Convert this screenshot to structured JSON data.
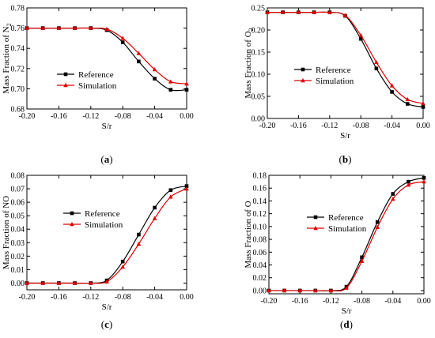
{
  "figure": {
    "legend_reference": "Reference",
    "legend_simulation": "Simulation"
  },
  "chart_data": [
    {
      "type": "line",
      "caption_letter": "a",
      "xlabel": "S/r",
      "ylabel_main": "Mass Fraction of N",
      "ylabel_sub": "2",
      "xlim": [
        -0.2,
        0.0
      ],
      "ylim": [
        0.68,
        0.78
      ],
      "xticks": [
        -0.2,
        -0.16,
        -0.12,
        -0.08,
        -0.04,
        0.0
      ],
      "xtick_labels": [
        "-0.20",
        "-0.16",
        "-0.12",
        "-0.08",
        "-0.04",
        "0.00"
      ],
      "yticks": [
        0.68,
        0.7,
        0.72,
        0.74,
        0.76,
        0.78
      ],
      "ytick_labels": [
        "0.68",
        "0.70",
        "0.72",
        "0.74",
        "0.76",
        "0.78"
      ],
      "grid": false,
      "legend_position": "center-left",
      "series": [
        {
          "name": "Reference",
          "color": "#000000",
          "marker": "square",
          "x": [
            -0.2,
            -0.18,
            -0.16,
            -0.14,
            -0.12,
            -0.1,
            -0.08,
            -0.06,
            -0.04,
            -0.02,
            0.0
          ],
          "y": [
            0.76,
            0.76,
            0.76,
            0.76,
            0.76,
            0.758,
            0.746,
            0.727,
            0.71,
            0.699,
            0.699
          ]
        },
        {
          "name": "Simulation",
          "color": "#e00000",
          "marker": "triangle",
          "x": [
            -0.2,
            -0.18,
            -0.16,
            -0.14,
            -0.12,
            -0.1,
            -0.08,
            -0.06,
            -0.04,
            -0.02,
            0.0
          ],
          "y": [
            0.76,
            0.76,
            0.76,
            0.76,
            0.76,
            0.759,
            0.75,
            0.735,
            0.719,
            0.707,
            0.705
          ]
        }
      ]
    },
    {
      "type": "line",
      "caption_letter": "b",
      "xlabel": "S/r",
      "ylabel_main": "Mass Fraction of O",
      "ylabel_sub": "2",
      "xlim": [
        -0.2,
        0.0
      ],
      "ylim": [
        0.0,
        0.25
      ],
      "xticks": [
        -0.2,
        -0.16,
        -0.12,
        -0.08,
        -0.04,
        0.0
      ],
      "xtick_labels": [
        "-0.20",
        "-0.16",
        "-0.12",
        "-0.08",
        "-0.04",
        "0.00"
      ],
      "yticks": [
        0.0,
        0.05,
        0.1,
        0.15,
        0.2,
        0.25
      ],
      "ytick_labels": [
        "0.00",
        "0.05",
        "0.10",
        "0.15",
        "0.20",
        "0.25"
      ],
      "grid": false,
      "legend_position": "center-left",
      "series": [
        {
          "name": "Reference",
          "color": "#000000",
          "marker": "square",
          "x": [
            -0.2,
            -0.18,
            -0.16,
            -0.14,
            -0.12,
            -0.1,
            -0.08,
            -0.06,
            -0.04,
            -0.02,
            0.0
          ],
          "y": [
            0.24,
            0.24,
            0.24,
            0.24,
            0.24,
            0.232,
            0.18,
            0.113,
            0.06,
            0.033,
            0.026
          ]
        },
        {
          "name": "Simulation",
          "color": "#e00000",
          "marker": "triangle",
          "x": [
            -0.2,
            -0.18,
            -0.16,
            -0.14,
            -0.12,
            -0.1,
            -0.08,
            -0.06,
            -0.04,
            -0.02,
            0.0
          ],
          "y": [
            0.24,
            0.24,
            0.24,
            0.24,
            0.24,
            0.233,
            0.188,
            0.127,
            0.074,
            0.043,
            0.034
          ]
        }
      ]
    },
    {
      "type": "line",
      "caption_letter": "c",
      "xlabel": "S/r",
      "ylabel_main": "Mass Fraction of NO",
      "ylabel_sub": "",
      "xlim": [
        -0.2,
        0.0
      ],
      "ylim": [
        -0.005,
        0.08
      ],
      "xticks": [
        -0.2,
        -0.16,
        -0.12,
        -0.08,
        -0.04,
        0.0
      ],
      "xtick_labels": [
        "-0.20",
        "-0.16",
        "-0.12",
        "-0.08",
        "-0.04",
        "0.00"
      ],
      "yticks": [
        0.0,
        0.01,
        0.02,
        0.03,
        0.04,
        0.05,
        0.06,
        0.07,
        0.08
      ],
      "ytick_labels": [
        "0.00",
        "0.01",
        "0.02",
        "0.03",
        "0.04",
        "0.05",
        "0.06",
        "0.07",
        "0.08"
      ],
      "grid": false,
      "legend_position": "center-left",
      "series": [
        {
          "name": "Reference",
          "color": "#000000",
          "marker": "square",
          "x": [
            -0.2,
            -0.18,
            -0.16,
            -0.14,
            -0.12,
            -0.1,
            -0.08,
            -0.06,
            -0.04,
            -0.02,
            0.0
          ],
          "y": [
            0.0,
            0.0,
            0.0,
            0.0,
            0.0,
            0.002,
            0.016,
            0.036,
            0.056,
            0.069,
            0.072
          ]
        },
        {
          "name": "Simulation",
          "color": "#e00000",
          "marker": "triangle",
          "x": [
            -0.2,
            -0.18,
            -0.16,
            -0.14,
            -0.12,
            -0.1,
            -0.08,
            -0.06,
            -0.04,
            -0.02,
            0.0
          ],
          "y": [
            0.0,
            0.0,
            0.0,
            0.0,
            0.0,
            0.001,
            0.012,
            0.029,
            0.048,
            0.064,
            0.07
          ]
        }
      ]
    },
    {
      "type": "line",
      "caption_letter": "d",
      "xlabel": "S/r",
      "ylabel_main": "Mass Fraction of O",
      "ylabel_sub": "",
      "xlim": [
        -0.2,
        0.0
      ],
      "ylim": [
        -0.005,
        0.18
      ],
      "xticks": [
        -0.2,
        -0.16,
        -0.12,
        -0.08,
        -0.04,
        0.0
      ],
      "xtick_labels": [
        "-0.20",
        "-0.16",
        "-0.12",
        "-0.08",
        "-0.04",
        "0.00"
      ],
      "yticks": [
        0.0,
        0.02,
        0.04,
        0.06,
        0.08,
        0.1,
        0.12,
        0.14,
        0.16,
        0.18
      ],
      "ytick_labels": [
        "0.00",
        "0.02",
        "0.04",
        "0.06",
        "0.08",
        "0.10",
        "0.12",
        "0.14",
        "0.16",
        "0.18"
      ],
      "grid": false,
      "legend_position": "center-left",
      "series": [
        {
          "name": "Reference",
          "color": "#000000",
          "marker": "square",
          "x": [
            -0.2,
            -0.18,
            -0.16,
            -0.14,
            -0.12,
            -0.1,
            -0.08,
            -0.06,
            -0.04,
            -0.02,
            0.0
          ],
          "y": [
            0.0,
            0.0,
            0.0,
            0.0,
            0.0,
            0.006,
            0.052,
            0.107,
            0.151,
            0.17,
            0.176
          ]
        },
        {
          "name": "Simulation",
          "color": "#e00000",
          "marker": "triangle",
          "x": [
            -0.2,
            -0.18,
            -0.16,
            -0.14,
            -0.12,
            -0.1,
            -0.08,
            -0.06,
            -0.04,
            -0.02,
            0.0
          ],
          "y": [
            0.0,
            0.0,
            0.0,
            0.0,
            0.0,
            0.004,
            0.046,
            0.099,
            0.143,
            0.165,
            0.17
          ]
        }
      ]
    }
  ]
}
